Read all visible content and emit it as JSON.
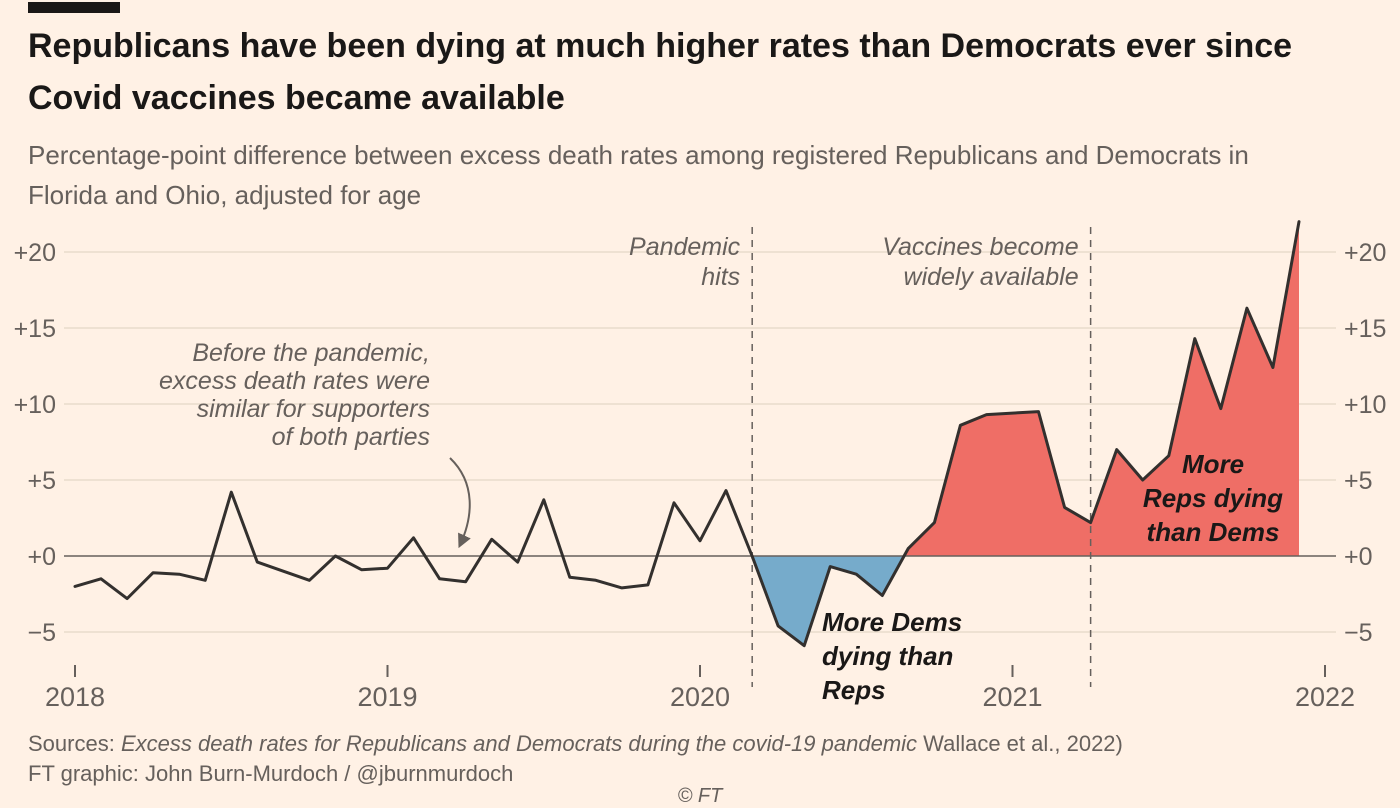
{
  "page": {
    "title": "Republicans have been dying at much higher rates than Democrats ever since Covid vaccines became available",
    "subtitle": "Percentage-point difference between excess death rates among registered Republicans and Democrats in Florida and Ohio, adjusted for age",
    "background": "#FFF1E5"
  },
  "footer": {
    "source_prefix": "Sources: ",
    "source_italic": "Excess death rates for Republicans and Democrats during the covid-19 pandemic",
    "source_suffix": " Wallace et al., 2022)",
    "credit": "FT graphic: John Burn-Murdoch / @jburnmurdoch",
    "ft_mark": "© FT"
  },
  "chart_data": {
    "type": "line",
    "title": "Republicans have been dying at much higher rates than Democrats ever since Covid vaccines became available",
    "subtitle": "Percentage-point difference between excess death rates among registered Republicans and Democrats in Florida and Ohio, adjusted for age",
    "x_start": 2018.0,
    "x_frequency": "monthly",
    "xlim": [
      2018,
      2022
    ],
    "ylim": [
      -7.5,
      22.5
    ],
    "x_ticks": [
      2018,
      2019,
      2020,
      2021,
      2022
    ],
    "y_ticks": [
      -5,
      0,
      5,
      10,
      15,
      20
    ],
    "y_tick_labels": [
      "−5",
      "+0",
      "+5",
      "+10",
      "+15",
      "+20"
    ],
    "values": [
      -2.0,
      -1.5,
      -2.8,
      -1.1,
      -1.2,
      -1.6,
      4.2,
      -0.4,
      -1.0,
      -1.6,
      0.0,
      -0.9,
      -0.8,
      1.2,
      -1.5,
      -1.7,
      1.1,
      -0.4,
      3.7,
      -1.4,
      -1.6,
      -2.1,
      -1.9,
      3.5,
      1.0,
      4.3,
      0.0,
      -4.6,
      -5.9,
      -0.7,
      -1.2,
      -2.6,
      0.5,
      2.2,
      8.6,
      9.3,
      9.4,
      9.5,
      3.2,
      2.2,
      7.0,
      5.0,
      6.6,
      14.3,
      9.7,
      16.3,
      12.4,
      22.0
    ],
    "line_color": "#33302E",
    "positive_fill": "#EF6E66",
    "negative_fill": "#76ABCB",
    "fill_start": 2020.167,
    "events": [
      {
        "t": 2020.167,
        "label": [
          "Pandemic",
          "hits"
        ]
      },
      {
        "t": 2021.25,
        "label": [
          "Vaccines become",
          "widely available"
        ]
      }
    ],
    "annotations": {
      "pre_pandemic": [
        "Before the pandemic,",
        "excess death rates were",
        "similar for supporters",
        "of both parties"
      ],
      "more_dems": [
        "More Dems",
        "dying than",
        "Reps"
      ],
      "more_reps": [
        "More",
        "Reps dying",
        "than Dems"
      ]
    }
  }
}
